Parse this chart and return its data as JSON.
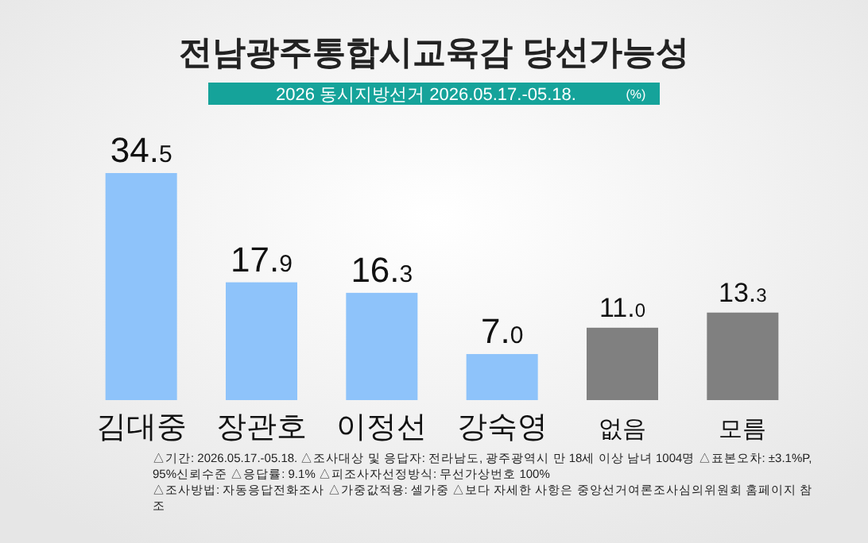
{
  "chart_data": {
    "type": "bar",
    "title": "전남광주통합시교육감 당선가능성",
    "subtitle": "2026 동시지방선거 2026.05.17.-05.18.",
    "categories": [
      "김대중",
      "장관호",
      "이정선",
      "강숙영",
      "없음",
      "모름"
    ],
    "values": [
      34.5,
      17.9,
      16.3,
      7.0,
      11.0,
      13.3
    ],
    "value_labels": [
      "34.5",
      "17.9",
      "16.3",
      "7.0",
      "11.0",
      "13.3"
    ],
    "colors": [
      "#8ec3fa",
      "#8ec3fa",
      "#8ec3fa",
      "#8ec3fa",
      "#808080",
      "#808080"
    ],
    "annotations": [
      "(%)",
      "△기간: 2026.05.17.-05.18. △조사대상 및 응답자: 전라남도, 광주광역시 만 18세 이상 남녀 1004명 △표본오차: ±3.1%P, 95%신뢰수준 △응답률: 9.1% △피조사자선정방식: 무선가상번호 100%",
      "△조사방법: 자동응답전화조사 △가중값적용: 셀가중 △보다 자세한 사항은 중앙선거여론조사심의위원회 홈페이지 참조"
    ]
  }
}
